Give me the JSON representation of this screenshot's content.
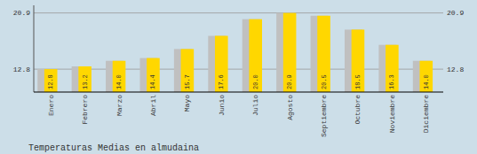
{
  "chart_data": {
    "type": "bar",
    "title": "Temperaturas Medias en almudaina",
    "categories": [
      "Enero",
      "Febrero",
      "Marzo",
      "Abril",
      "Mayo",
      "Junio",
      "Julio",
      "Agosto",
      "Septiembre",
      "Octubre",
      "Noviembre",
      "Diciembre"
    ],
    "values": [
      12.8,
      13.2,
      14.0,
      14.4,
      15.7,
      17.6,
      20.0,
      20.9,
      20.5,
      18.5,
      16.3,
      14.0
    ],
    "value_labels": [
      "12.8",
      "13.2",
      "14.0",
      "14.4",
      "15.7",
      "17.6",
      "20.0",
      "20.9",
      "20.5",
      "18.5",
      "16.3",
      "14.0"
    ],
    "color": "#FFD700",
    "ylim": [
      9.5,
      22.0
    ],
    "yticks": [
      12.8,
      20.9
    ],
    "grid": true,
    "data_labels": true
  }
}
